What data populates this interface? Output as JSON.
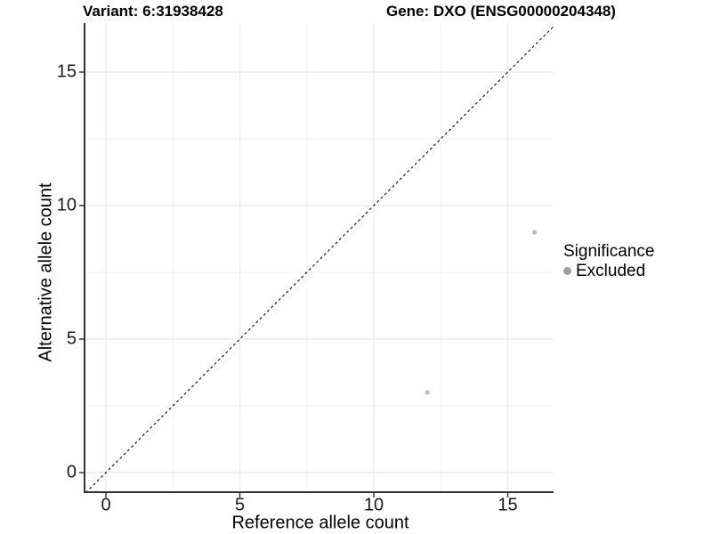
{
  "header": {
    "variant_title": "Variant: 6:31938428",
    "gene_title": "Gene: DXO (ENSG00000204348)"
  },
  "chart_data": {
    "type": "scatter",
    "title_left": "Variant: 6:31938428",
    "title_right": "Gene: DXO (ENSG00000204348)",
    "xlabel": "Reference allele count",
    "ylabel": "Alternative allele count",
    "xlim": [
      -0.8,
      16.7
    ],
    "ylim": [
      -0.75,
      16.83
    ],
    "x_ticks": [
      0,
      5,
      10,
      15
    ],
    "y_ticks": [
      0,
      5,
      10,
      15
    ],
    "x_minor_ticks": [
      2.5,
      7.5,
      12.5
    ],
    "y_minor_ticks": [
      2.5,
      7.5,
      12.5
    ],
    "grid": true,
    "series": [
      {
        "name": "Excluded",
        "color": "#bdbdbd",
        "points": [
          {
            "x": 12,
            "y": 3
          },
          {
            "x": 16,
            "y": 9
          }
        ]
      }
    ],
    "reference_line": {
      "type": "identity",
      "slope": 1,
      "intercept": 0,
      "style": "dashed",
      "color": "#1a1a1a"
    },
    "legend": {
      "title": "Significance",
      "position": "right",
      "entries": [
        "Excluded"
      ],
      "key_color": "#9e9e9e"
    },
    "colors": {
      "background": "#ffffff",
      "axis_line": "#333333",
      "grid_major": "#e8e8e8",
      "grid_minor": "#f2f2f2",
      "point": "#bdbdbd"
    }
  }
}
